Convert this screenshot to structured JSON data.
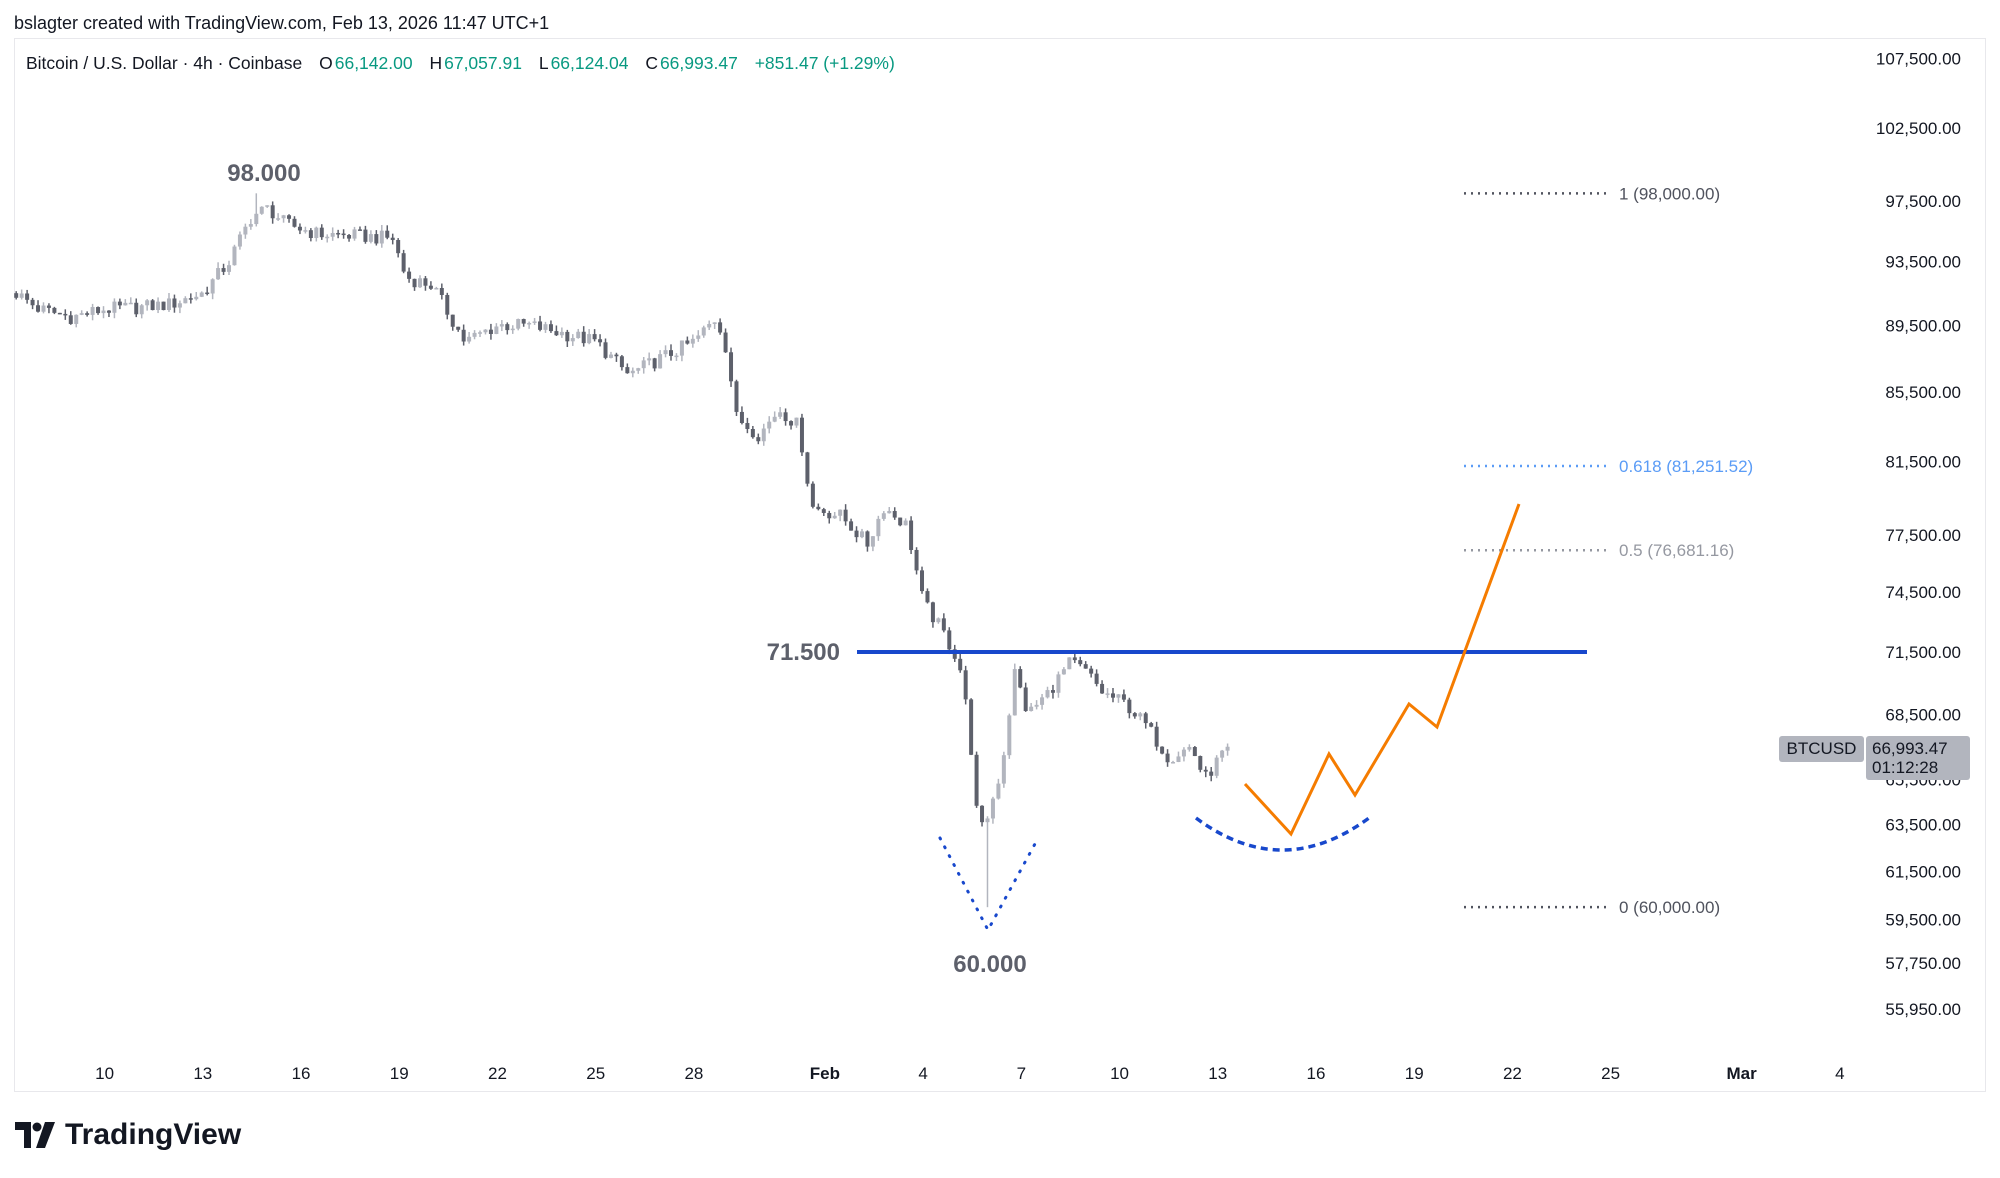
{
  "credit": "bslagter created with TradingView.com, Feb 13, 2026 11:47 UTC+1",
  "legend": {
    "symbol": "Bitcoin / U.S. Dollar · 4h · Coinbase",
    "o_label": "O",
    "o": "66,142.00",
    "h_label": "H",
    "h": "67,057.91",
    "l_label": "L",
    "l": "66,124.04",
    "c_label": "C",
    "c": "66,993.47",
    "change": "+851.47 (+1.29%)"
  },
  "badge": {
    "symbol": "BTCUSD",
    "price": "66,993.47",
    "countdown": "01:12:28"
  },
  "logo": "TradingView",
  "colors": {
    "up": "#b2b5be",
    "down": "#5d606b",
    "level": "#1848cc",
    "projection": "#f57c00",
    "fib_618": "#5b9cf6"
  },
  "chart_data": {
    "type": "candlestick",
    "timeframe": "4h",
    "y_scale": "log",
    "ylim": [
      55000,
      110000
    ],
    "price_ticks": [
      "107,500.00",
      "102,500.00",
      "97,500.00",
      "93,500.00",
      "89,500.00",
      "85,500.00",
      "81,500.00",
      "77,500.00",
      "74,500.00",
      "71,500.00",
      "68,500.00",
      "65,500.00",
      "63,500.00",
      "61,500.00",
      "59,500.00",
      "57,750.00",
      "55,950.00"
    ],
    "time_ticks": [
      {
        "label": "10",
        "day": 10
      },
      {
        "label": "13",
        "day": 13
      },
      {
        "label": "16",
        "day": 16
      },
      {
        "label": "19",
        "day": 19
      },
      {
        "label": "22",
        "day": 22
      },
      {
        "label": "25",
        "day": 25
      },
      {
        "label": "28",
        "day": 28
      },
      {
        "label": "Feb",
        "day": 32
      },
      {
        "label": "4",
        "day": 35
      },
      {
        "label": "7",
        "day": 38
      },
      {
        "label": "10",
        "day": 41
      },
      {
        "label": "13",
        "day": 44
      },
      {
        "label": "16",
        "day": 47
      },
      {
        "label": "19",
        "day": 50
      },
      {
        "label": "22",
        "day": 53
      },
      {
        "label": "25",
        "day": 56
      },
      {
        "label": "Mar",
        "day": 60
      },
      {
        "label": "4",
        "day": 63
      }
    ],
    "day_axis_note": "days counted from Jan 0 (Feb 1 = 32)",
    "price_path": [
      [
        7.3,
        91500
      ],
      [
        8,
        90500
      ],
      [
        9,
        90000
      ],
      [
        10,
        90500
      ],
      [
        11,
        90600
      ],
      [
        12,
        90800
      ],
      [
        13,
        91500
      ],
      [
        13.8,
        93500
      ],
      [
        14.5,
        96500
      ],
      [
        15,
        97000
      ],
      [
        15.5,
        96000
      ],
      [
        16.5,
        95300
      ],
      [
        17.5,
        95200
      ],
      [
        18.8,
        95000
      ],
      [
        19.2,
        92500
      ],
      [
        20,
        92000
      ],
      [
        21,
        88500
      ],
      [
        22,
        89500
      ],
      [
        23,
        89500
      ],
      [
        24,
        89000
      ],
      [
        25,
        88500
      ],
      [
        26,
        86500
      ],
      [
        27,
        87500
      ],
      [
        28,
        88500
      ],
      [
        28.7,
        90000
      ],
      [
        29.0,
        88000
      ],
      [
        29.3,
        84000
      ],
      [
        30,
        83000
      ],
      [
        30.6,
        84500
      ],
      [
        31.2,
        83500
      ],
      [
        31.6,
        79000
      ],
      [
        32.5,
        78500
      ],
      [
        33.3,
        77000
      ],
      [
        33.8,
        79000
      ],
      [
        34.5,
        78000
      ],
      [
        35,
        74000
      ],
      [
        35.6,
        72500
      ],
      [
        36.1,
        71000
      ],
      [
        36.4,
        68000
      ],
      [
        36.7,
        63000
      ],
      [
        37,
        64000
      ],
      [
        37.4,
        66000
      ],
      [
        37.8,
        70500
      ],
      [
        38.2,
        68500
      ],
      [
        38.8,
        69500
      ],
      [
        39.5,
        71000
      ],
      [
        40,
        70500
      ],
      [
        40.5,
        69500
      ],
      [
        41.2,
        69000
      ],
      [
        41.8,
        68000
      ],
      [
        42.5,
        66500
      ],
      [
        43.2,
        67000
      ],
      [
        43.6,
        65500
      ],
      [
        44.3,
        66993.47
      ]
    ],
    "extremes": {
      "high": {
        "day": 14.7,
        "price": 98000
      },
      "low": {
        "day": 37.0,
        "price": 60000
      }
    },
    "annotations": {
      "high_label": "98.000",
      "level_label": "71.500",
      "level_price": 71500,
      "low_label": "60.000"
    },
    "fib_levels": [
      {
        "label": "1 (98,000.00)",
        "price": 98000
      },
      {
        "label": "0.618 (81,251.52)",
        "price": 81251.52
      },
      {
        "label": "0.5 (76,681.16)",
        "price": 76681.16
      },
      {
        "label": "0 (60,000.00)",
        "price": 60000
      }
    ]
  }
}
